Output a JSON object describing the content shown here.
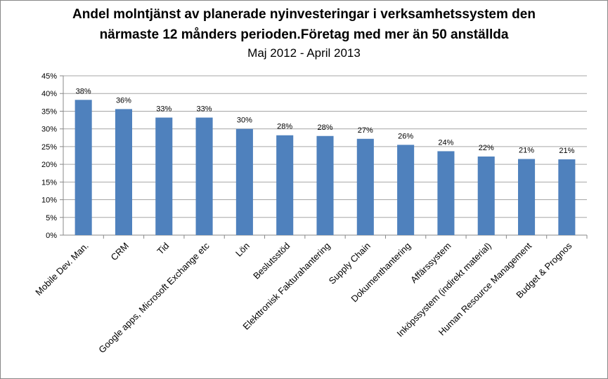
{
  "chart_data": {
    "type": "bar",
    "title_line1": "Andel molntjänst  av planerade nyinvesteringar i verksamhetssystem den",
    "title_line2": "närmaste 12 månders perioden.Företag med mer än 50 anställda",
    "subtitle": "Maj 2012 - April 2013",
    "xlabel": "",
    "ylabel": "",
    "ylim": [
      0,
      45
    ],
    "ytick_step": 5,
    "ytick_labels": [
      "0%",
      "5%",
      "10%",
      "15%",
      "20%",
      "25%",
      "30%",
      "35%",
      "40%",
      "45%"
    ],
    "grid": true,
    "legend": "none",
    "bar_color": "#4F81BD",
    "grid_color": "#A6A6A6",
    "categories": [
      "Mobile Dev. Man.",
      "CRM",
      "Tid",
      "Google apps, Microsoft Exchange etc",
      "Lön",
      "Beslutsstöd",
      "Elekttronisk Fakturahantering",
      "Supply Chain",
      "Dokumenthantering",
      "Affärssystem",
      "Inköpssystem  (indirekt material)",
      "Human Resource Management",
      "Budget & Prognos"
    ],
    "values": [
      38.2,
      35.6,
      33.2,
      33.2,
      30.0,
      28.2,
      28.0,
      27.2,
      25.5,
      23.7,
      22.2,
      21.5,
      21.4
    ],
    "data_labels": [
      "38%",
      "36%",
      "33%",
      "33%",
      "30%",
      "28%",
      "28%",
      "27%",
      "26%",
      "24%",
      "22%",
      "21%",
      "21%"
    ]
  }
}
